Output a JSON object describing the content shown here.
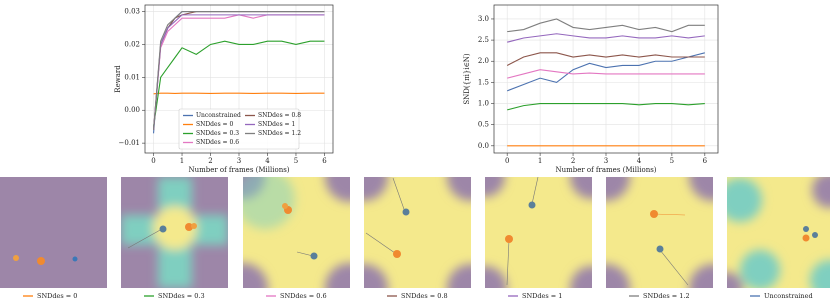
{
  "chart_data": [
    {
      "type": "line",
      "xlabel": "Number of frames (Millions)",
      "ylabel": "Reward",
      "x": [
        0,
        0.25,
        0.5,
        0.75,
        1,
        1.5,
        2,
        2.5,
        3,
        3.5,
        4,
        4.5,
        5,
        5.5,
        6
      ],
      "xlim": [
        -0.3,
        6.3
      ],
      "xticks": [
        0,
        1,
        2,
        3,
        4,
        5,
        6
      ],
      "ylim": [
        -0.013,
        0.032
      ],
      "yticks": [
        {
          "value": -0.01,
          "label": "−0.01"
        },
        {
          "value": 0,
          "label": "0.00"
        },
        {
          "value": 0.01,
          "label": "0.01"
        },
        {
          "value": 0.02,
          "label": "0.02"
        },
        {
          "value": 0.03,
          "label": "0.03"
        }
      ],
      "grid": true,
      "legend": "lower center",
      "series": [
        {
          "name": "Unconstrained",
          "color": "#4c72b0",
          "values": [
            -0.007,
            0.02,
            0.025,
            0.028,
            0.03,
            0.03,
            0.03,
            0.03,
            0.03,
            0.03,
            0.03,
            0.03,
            0.03,
            0.03,
            0.03
          ]
        },
        {
          "name": "SNDdes = 0",
          "color": "#ff7f0e",
          "values": [
            0.005,
            0.0052,
            0.0052,
            0.0051,
            0.0052,
            0.0052,
            0.0051,
            0.0052,
            0.0052,
            0.0051,
            0.0052,
            0.0052,
            0.0051,
            0.0052,
            0.0052
          ]
        },
        {
          "name": "SNDdes = 0.3",
          "color": "#2ca02c",
          "values": [
            -0.005,
            0.01,
            0.013,
            0.016,
            0.019,
            0.017,
            0.02,
            0.021,
            0.02,
            0.02,
            0.021,
            0.021,
            0.02,
            0.021,
            0.021
          ]
        },
        {
          "name": "SNDdes = 0.6",
          "color": "#e377c2",
          "values": [
            -0.006,
            0.019,
            0.024,
            0.026,
            0.028,
            0.028,
            0.028,
            0.028,
            0.029,
            0.028,
            0.029,
            0.029,
            0.029,
            0.029,
            0.029
          ]
        },
        {
          "name": "SNDdes = 0.8",
          "color": "#8c564b",
          "values": [
            -0.006,
            0.02,
            0.025,
            0.028,
            0.029,
            0.03,
            0.03,
            0.03,
            0.03,
            0.03,
            0.03,
            0.03,
            0.03,
            0.03,
            0.03
          ]
        },
        {
          "name": "SNDdes = 1",
          "color": "#9467bd",
          "values": [
            -0.006,
            0.02,
            0.025,
            0.027,
            0.029,
            0.029,
            0.029,
            0.029,
            0.029,
            0.029,
            0.029,
            0.029,
            0.029,
            0.029,
            0.029
          ]
        },
        {
          "name": "SNDdes = 1.2",
          "color": "#7f7f7f",
          "values": [
            -0.006,
            0.021,
            0.026,
            0.028,
            0.03,
            0.03,
            0.03,
            0.03,
            0.03,
            0.03,
            0.03,
            0.03,
            0.03,
            0.03,
            0.03
          ]
        }
      ]
    },
    {
      "type": "line",
      "xlabel": "Number of frames (Millions)",
      "ylabel": "SND({πi}i∈N)",
      "x": [
        0,
        0.5,
        1,
        1.5,
        2,
        2.5,
        3,
        3.5,
        4,
        4.5,
        5,
        5.5,
        6
      ],
      "xlim": [
        -0.4,
        6.4
      ],
      "xticks": [
        0,
        1,
        2,
        3,
        4,
        5,
        6
      ],
      "ylim": [
        -0.17,
        3.33
      ],
      "yticks": [
        {
          "value": 0,
          "label": "0.0"
        },
        {
          "value": 0.5,
          "label": "0.5"
        },
        {
          "value": 1,
          "label": "1.0"
        },
        {
          "value": 1.5,
          "label": "1.5"
        },
        {
          "value": 2,
          "label": "2.0"
        },
        {
          "value": 2.5,
          "label": "2.5"
        },
        {
          "value": 3,
          "label": "3.0"
        }
      ],
      "grid": true,
      "series": [
        {
          "name": "Unconstrained",
          "color": "#4c72b0",
          "values": [
            1.3,
            1.45,
            1.6,
            1.5,
            1.8,
            1.95,
            1.85,
            1.9,
            1.9,
            2.0,
            2.0,
            2.1,
            2.2
          ]
        },
        {
          "name": "SNDdes = 0",
          "color": "#ff7f0e",
          "values": [
            0,
            0,
            0,
            0,
            0,
            0,
            0,
            0,
            0,
            0,
            0,
            0,
            0
          ]
        },
        {
          "name": "SNDdes = 0.3",
          "color": "#2ca02c",
          "values": [
            0.85,
            0.95,
            1.0,
            1.0,
            1.0,
            1.0,
            1.0,
            1.0,
            0.97,
            1.0,
            1.0,
            0.97,
            1.0
          ]
        },
        {
          "name": "SNDdes = 0.6",
          "color": "#e377c2",
          "values": [
            1.6,
            1.7,
            1.8,
            1.75,
            1.7,
            1.72,
            1.7,
            1.7,
            1.7,
            1.7,
            1.7,
            1.7,
            1.7
          ]
        },
        {
          "name": "SNDdes = 0.8",
          "color": "#8c564b",
          "values": [
            1.9,
            2.1,
            2.2,
            2.2,
            2.1,
            2.15,
            2.1,
            2.15,
            2.1,
            2.15,
            2.1,
            2.1,
            2.1
          ]
        },
        {
          "name": "SNDdes = 1",
          "color": "#9467bd",
          "values": [
            2.45,
            2.55,
            2.6,
            2.65,
            2.6,
            2.55,
            2.55,
            2.6,
            2.55,
            2.55,
            2.6,
            2.55,
            2.6
          ]
        },
        {
          "name": "SNDdes = 1.2",
          "color": "#7f7f7f",
          "values": [
            2.7,
            2.75,
            2.9,
            3.0,
            2.8,
            2.75,
            2.8,
            2.85,
            2.75,
            2.8,
            2.7,
            2.85,
            2.85
          ]
        }
      ]
    }
  ]
}
